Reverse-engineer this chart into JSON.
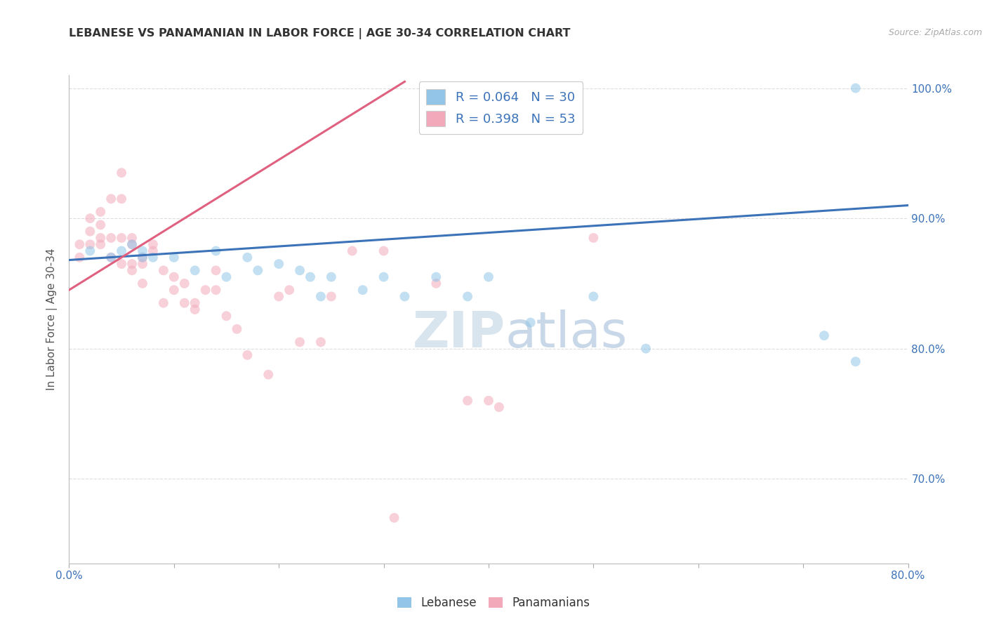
{
  "title": "LEBANESE VS PANAMANIAN IN LABOR FORCE | AGE 30-34 CORRELATION CHART",
  "source": "Source: ZipAtlas.com",
  "ylabel": "In Labor Force | Age 30-34",
  "xlim": [
    0.0,
    0.8
  ],
  "ylim": [
    0.635,
    1.01
  ],
  "y_ticks": [
    0.7,
    0.8,
    0.9,
    1.0
  ],
  "y_tick_labels": [
    "70.0%",
    "80.0%",
    "90.0%",
    "100.0%"
  ],
  "x_ticks": [
    0.0,
    0.1,
    0.2,
    0.3,
    0.4,
    0.5,
    0.6,
    0.7,
    0.8
  ],
  "x_tick_labels_show": [
    "0.0%",
    "",
    "",
    "",
    "",
    "",
    "",
    "",
    "80.0%"
  ],
  "watermark_zip": "ZIP",
  "watermark_atlas": "atlas",
  "blue_scatter_x": [
    0.02,
    0.04,
    0.05,
    0.06,
    0.07,
    0.07,
    0.08,
    0.1,
    0.12,
    0.14,
    0.15,
    0.17,
    0.18,
    0.2,
    0.22,
    0.23,
    0.24,
    0.25,
    0.28,
    0.3,
    0.32,
    0.35,
    0.38,
    0.4,
    0.44,
    0.5,
    0.55,
    0.72,
    0.75,
    0.75
  ],
  "blue_scatter_y": [
    0.875,
    0.87,
    0.875,
    0.88,
    0.875,
    0.87,
    0.87,
    0.87,
    0.86,
    0.875,
    0.855,
    0.87,
    0.86,
    0.865,
    0.86,
    0.855,
    0.84,
    0.855,
    0.845,
    0.855,
    0.84,
    0.855,
    0.84,
    0.855,
    0.82,
    0.84,
    0.8,
    0.81,
    0.79,
    1.0
  ],
  "pink_scatter_x": [
    0.01,
    0.01,
    0.02,
    0.02,
    0.02,
    0.03,
    0.03,
    0.03,
    0.03,
    0.04,
    0.04,
    0.04,
    0.05,
    0.05,
    0.05,
    0.05,
    0.06,
    0.06,
    0.06,
    0.06,
    0.07,
    0.07,
    0.07,
    0.08,
    0.08,
    0.09,
    0.09,
    0.1,
    0.1,
    0.11,
    0.11,
    0.12,
    0.12,
    0.13,
    0.14,
    0.14,
    0.15,
    0.16,
    0.17,
    0.19,
    0.2,
    0.21,
    0.22,
    0.24,
    0.25,
    0.27,
    0.3,
    0.31,
    0.35,
    0.38,
    0.4,
    0.41,
    0.5
  ],
  "pink_scatter_y": [
    0.87,
    0.88,
    0.89,
    0.9,
    0.88,
    0.88,
    0.905,
    0.895,
    0.885,
    0.915,
    0.885,
    0.87,
    0.885,
    0.865,
    0.915,
    0.935,
    0.88,
    0.86,
    0.865,
    0.885,
    0.87,
    0.85,
    0.865,
    0.875,
    0.88,
    0.86,
    0.835,
    0.855,
    0.845,
    0.835,
    0.85,
    0.83,
    0.835,
    0.845,
    0.845,
    0.86,
    0.825,
    0.815,
    0.795,
    0.78,
    0.84,
    0.845,
    0.805,
    0.805,
    0.84,
    0.875,
    0.875,
    0.67,
    0.85,
    0.76,
    0.76,
    0.755,
    0.885
  ],
  "blue_line_x": [
    0.0,
    0.8
  ],
  "blue_line_y": [
    0.868,
    0.91
  ],
  "pink_line_x": [
    0.0,
    0.32
  ],
  "pink_line_y": [
    0.845,
    1.005
  ],
  "bg_color": "#FFFFFF",
  "blue_color": "#92C5E8",
  "pink_color": "#F2AABB",
  "blue_line_color": "#3B72B8",
  "pink_line_color": "#E06080",
  "grid_color": "#DDDDDD",
  "marker_size": 100,
  "marker_alpha": 0.55,
  "legend_blue_label": "R = 0.064   N = 30",
  "legend_pink_label": "R = 0.398   N = 53",
  "legend_r_color": "#3B72B8",
  "legend_n_color": "#3B72B8"
}
